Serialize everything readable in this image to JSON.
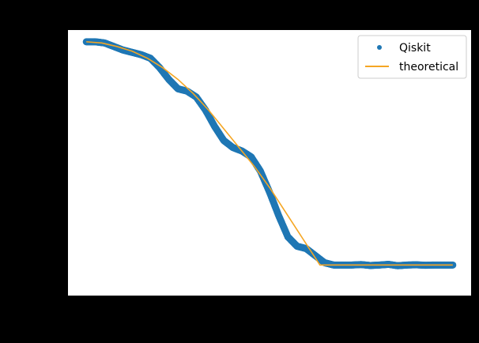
{
  "chart_data": {
    "type": "scatter",
    "title": "",
    "xlabel": "",
    "ylabel": "",
    "grid": false,
    "legend": {
      "placement": "top-right"
    },
    "x_range": [
      -0.6,
      12.6
    ],
    "y_range": [
      -0.08,
      1.05
    ],
    "colors": {
      "figure_background": "#000000",
      "axes_background": "#ffffff",
      "qiskit": "#1f77b4",
      "theoretical": "#f5a623"
    },
    "series": [
      {
        "name": "Qiskit",
        "kind": "scatter",
        "x": [
          0.0,
          0.3,
          0.6,
          0.9,
          1.2,
          1.5,
          1.8,
          2.1,
          2.4,
          2.7,
          3.0,
          3.3,
          3.6,
          3.9,
          4.2,
          4.5,
          4.8,
          5.1,
          5.4,
          5.7,
          6.0,
          6.3,
          6.6,
          6.9,
          7.2,
          7.5,
          7.8,
          8.1,
          8.4,
          8.7,
          9.0,
          9.3,
          9.6,
          9.9,
          10.2,
          10.5,
          10.8,
          11.1,
          11.4,
          11.7,
          12.0
        ],
        "y": [
          1.0,
          1.0,
          0.995,
          0.98,
          0.965,
          0.955,
          0.945,
          0.93,
          0.89,
          0.84,
          0.8,
          0.79,
          0.765,
          0.71,
          0.64,
          0.58,
          0.55,
          0.535,
          0.51,
          0.45,
          0.36,
          0.26,
          0.17,
          0.13,
          0.12,
          0.09,
          0.06,
          0.05,
          0.05,
          0.05,
          0.052,
          0.048,
          0.05,
          0.053,
          0.047,
          0.05,
          0.051,
          0.049,
          0.05,
          0.05,
          0.05
        ]
      },
      {
        "name": "theoretical",
        "kind": "line",
        "x": [
          0.0,
          0.5,
          1.0,
          1.5,
          2.0,
          2.5,
          3.0,
          3.5,
          4.0,
          4.5,
          5.0,
          5.5,
          6.0,
          6.5,
          7.0,
          7.5,
          7.65,
          8.0,
          9.0,
          10.0,
          11.0,
          12.0
        ],
        "y": [
          1.0,
          0.995,
          0.98,
          0.96,
          0.93,
          0.89,
          0.84,
          0.78,
          0.71,
          0.63,
          0.55,
          0.47,
          0.38,
          0.28,
          0.18,
          0.08,
          0.05,
          0.05,
          0.05,
          0.05,
          0.05,
          0.05
        ]
      }
    ]
  }
}
